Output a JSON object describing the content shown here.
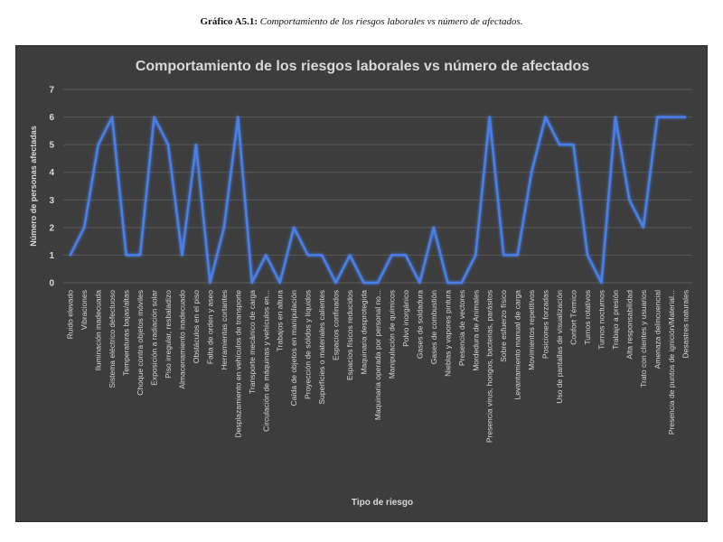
{
  "caption": {
    "label": "Gráfico A5.1:",
    "text": "Comportamiento de los riesgos laborales vs número de afectados."
  },
  "colors": {
    "background": "#3d3d3d",
    "line": "#4a7fe8",
    "gridline": "#5a5a5a",
    "text": "#d9d9d9"
  },
  "chart_data": {
    "type": "line",
    "title": "Comportamiento de los riesgos laborales vs número de afectados",
    "xlabel": "Tipo de riesgo",
    "ylabel": "Número de personas afectadas",
    "ylim": [
      0,
      7
    ],
    "yticks": [
      0,
      1,
      2,
      3,
      4,
      5,
      6,
      7
    ],
    "grid": true,
    "categories": [
      "Ruido elevado",
      "Vibraciones",
      "Iluminación inadecuada",
      "Sistema eléctrico defectuoso",
      "Temperaturas bajas/altas",
      "Choque contra objetos móviles",
      "Exposición a radiación solar",
      "Piso irregular, resbaladizo",
      "Almacenamiento inadecuado",
      "Obstáculos en el piso",
      "Falta de orden y aseo",
      "Herramientas cortantes",
      "Desplazamiento en vehículos de transporte",
      "Transporte mecánico de carga",
      "Circulación de máquinas y vehículos en...",
      "Trabajos en altura",
      "Caída de objetos en manipulación",
      "Proyección de sólidos y líquidos",
      "Superficies o materiales calientes",
      "Espacios confinados",
      "Espacios físicos reducidos",
      "Maquinaria desprotegida",
      "Maquinaria operada por personal no...",
      "Manipulación de químicos",
      "Polvo inorgánico",
      "Gases de soldadura",
      "Gases de combustión",
      "Nieblas y vapores pintura",
      "Presencia de vectores",
      "Mordedura de Animales",
      "Presencia virus, hongos, bacterias, parásitos",
      "Sobre esfuerzo físico",
      "Levantamiento manual de carga",
      "Movimientos repetitivos",
      "Posiciones forzadas",
      "Uso de pantallas de visualización",
      "Confort Térmico",
      "Turnos rotativos",
      "Turnos nocturnos",
      "Trabajo a presión",
      "Alta responsabilidad",
      "Trato con clientes y usuarios",
      "Amenaza delincuencial",
      "Presencia de puntos de ignición/Material...",
      "Desastres naturales"
    ],
    "series": [
      {
        "values": [
          1,
          2,
          5,
          6,
          1,
          1,
          6,
          5,
          1,
          5,
          0,
          2,
          6,
          0,
          1,
          0,
          2,
          1,
          1,
          0,
          1,
          0,
          0,
          1,
          1,
          0,
          2,
          0,
          0,
          1,
          6,
          1,
          1,
          4,
          6,
          5,
          5,
          1,
          0,
          6,
          3,
          2,
          6,
          6,
          6
        ]
      }
    ]
  }
}
